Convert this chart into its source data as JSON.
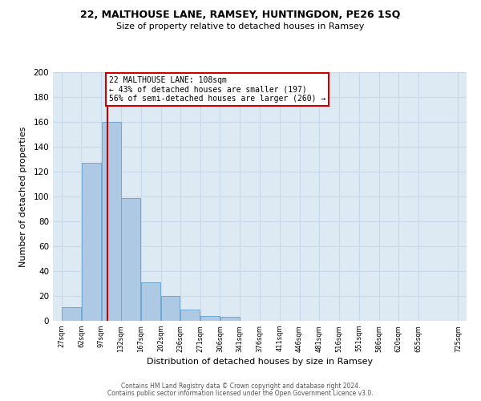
{
  "title1": "22, MALTHOUSE LANE, RAMSEY, HUNTINGDON, PE26 1SQ",
  "title2": "Size of property relative to detached houses in Ramsey",
  "xlabel": "Distribution of detached houses by size in Ramsey",
  "ylabel": "Number of detached properties",
  "bar_values": [
    11,
    127,
    160,
    99,
    31,
    20,
    9,
    4,
    3,
    0,
    0,
    0,
    0,
    0,
    0,
    0,
    0,
    0,
    0
  ],
  "bar_edges": [
    27,
    62,
    97,
    132,
    167,
    202,
    236,
    271,
    306,
    341,
    376,
    411,
    446,
    481,
    516,
    551,
    586,
    620,
    655,
    725
  ],
  "tick_labels": [
    "27sqm",
    "62sqm",
    "97sqm",
    "132sqm",
    "167sqm",
    "202sqm",
    "236sqm",
    "271sqm",
    "306sqm",
    "341sqm",
    "376sqm",
    "411sqm",
    "446sqm",
    "481sqm",
    "516sqm",
    "551sqm",
    "586sqm",
    "620sqm",
    "655sqm",
    "725sqm"
  ],
  "bar_color": "#aec9e3",
  "bar_edgecolor": "#6fa8d0",
  "vline_x": 108,
  "vline_color": "#cc0000",
  "annotation_box_text": "22 MALTHOUSE LANE: 108sqm\n← 43% of detached houses are smaller (197)\n56% of semi-detached houses are larger (260) →",
  "annotation_box_color": "#cc0000",
  "ylim": [
    0,
    200
  ],
  "yticks": [
    0,
    20,
    40,
    60,
    80,
    100,
    120,
    140,
    160,
    180,
    200
  ],
  "grid_color": "#c8daea",
  "bg_color": "#dde9f3",
  "footer1": "Contains HM Land Registry data © Crown copyright and database right 2024.",
  "footer2": "Contains public sector information licensed under the Open Government Licence v3.0."
}
